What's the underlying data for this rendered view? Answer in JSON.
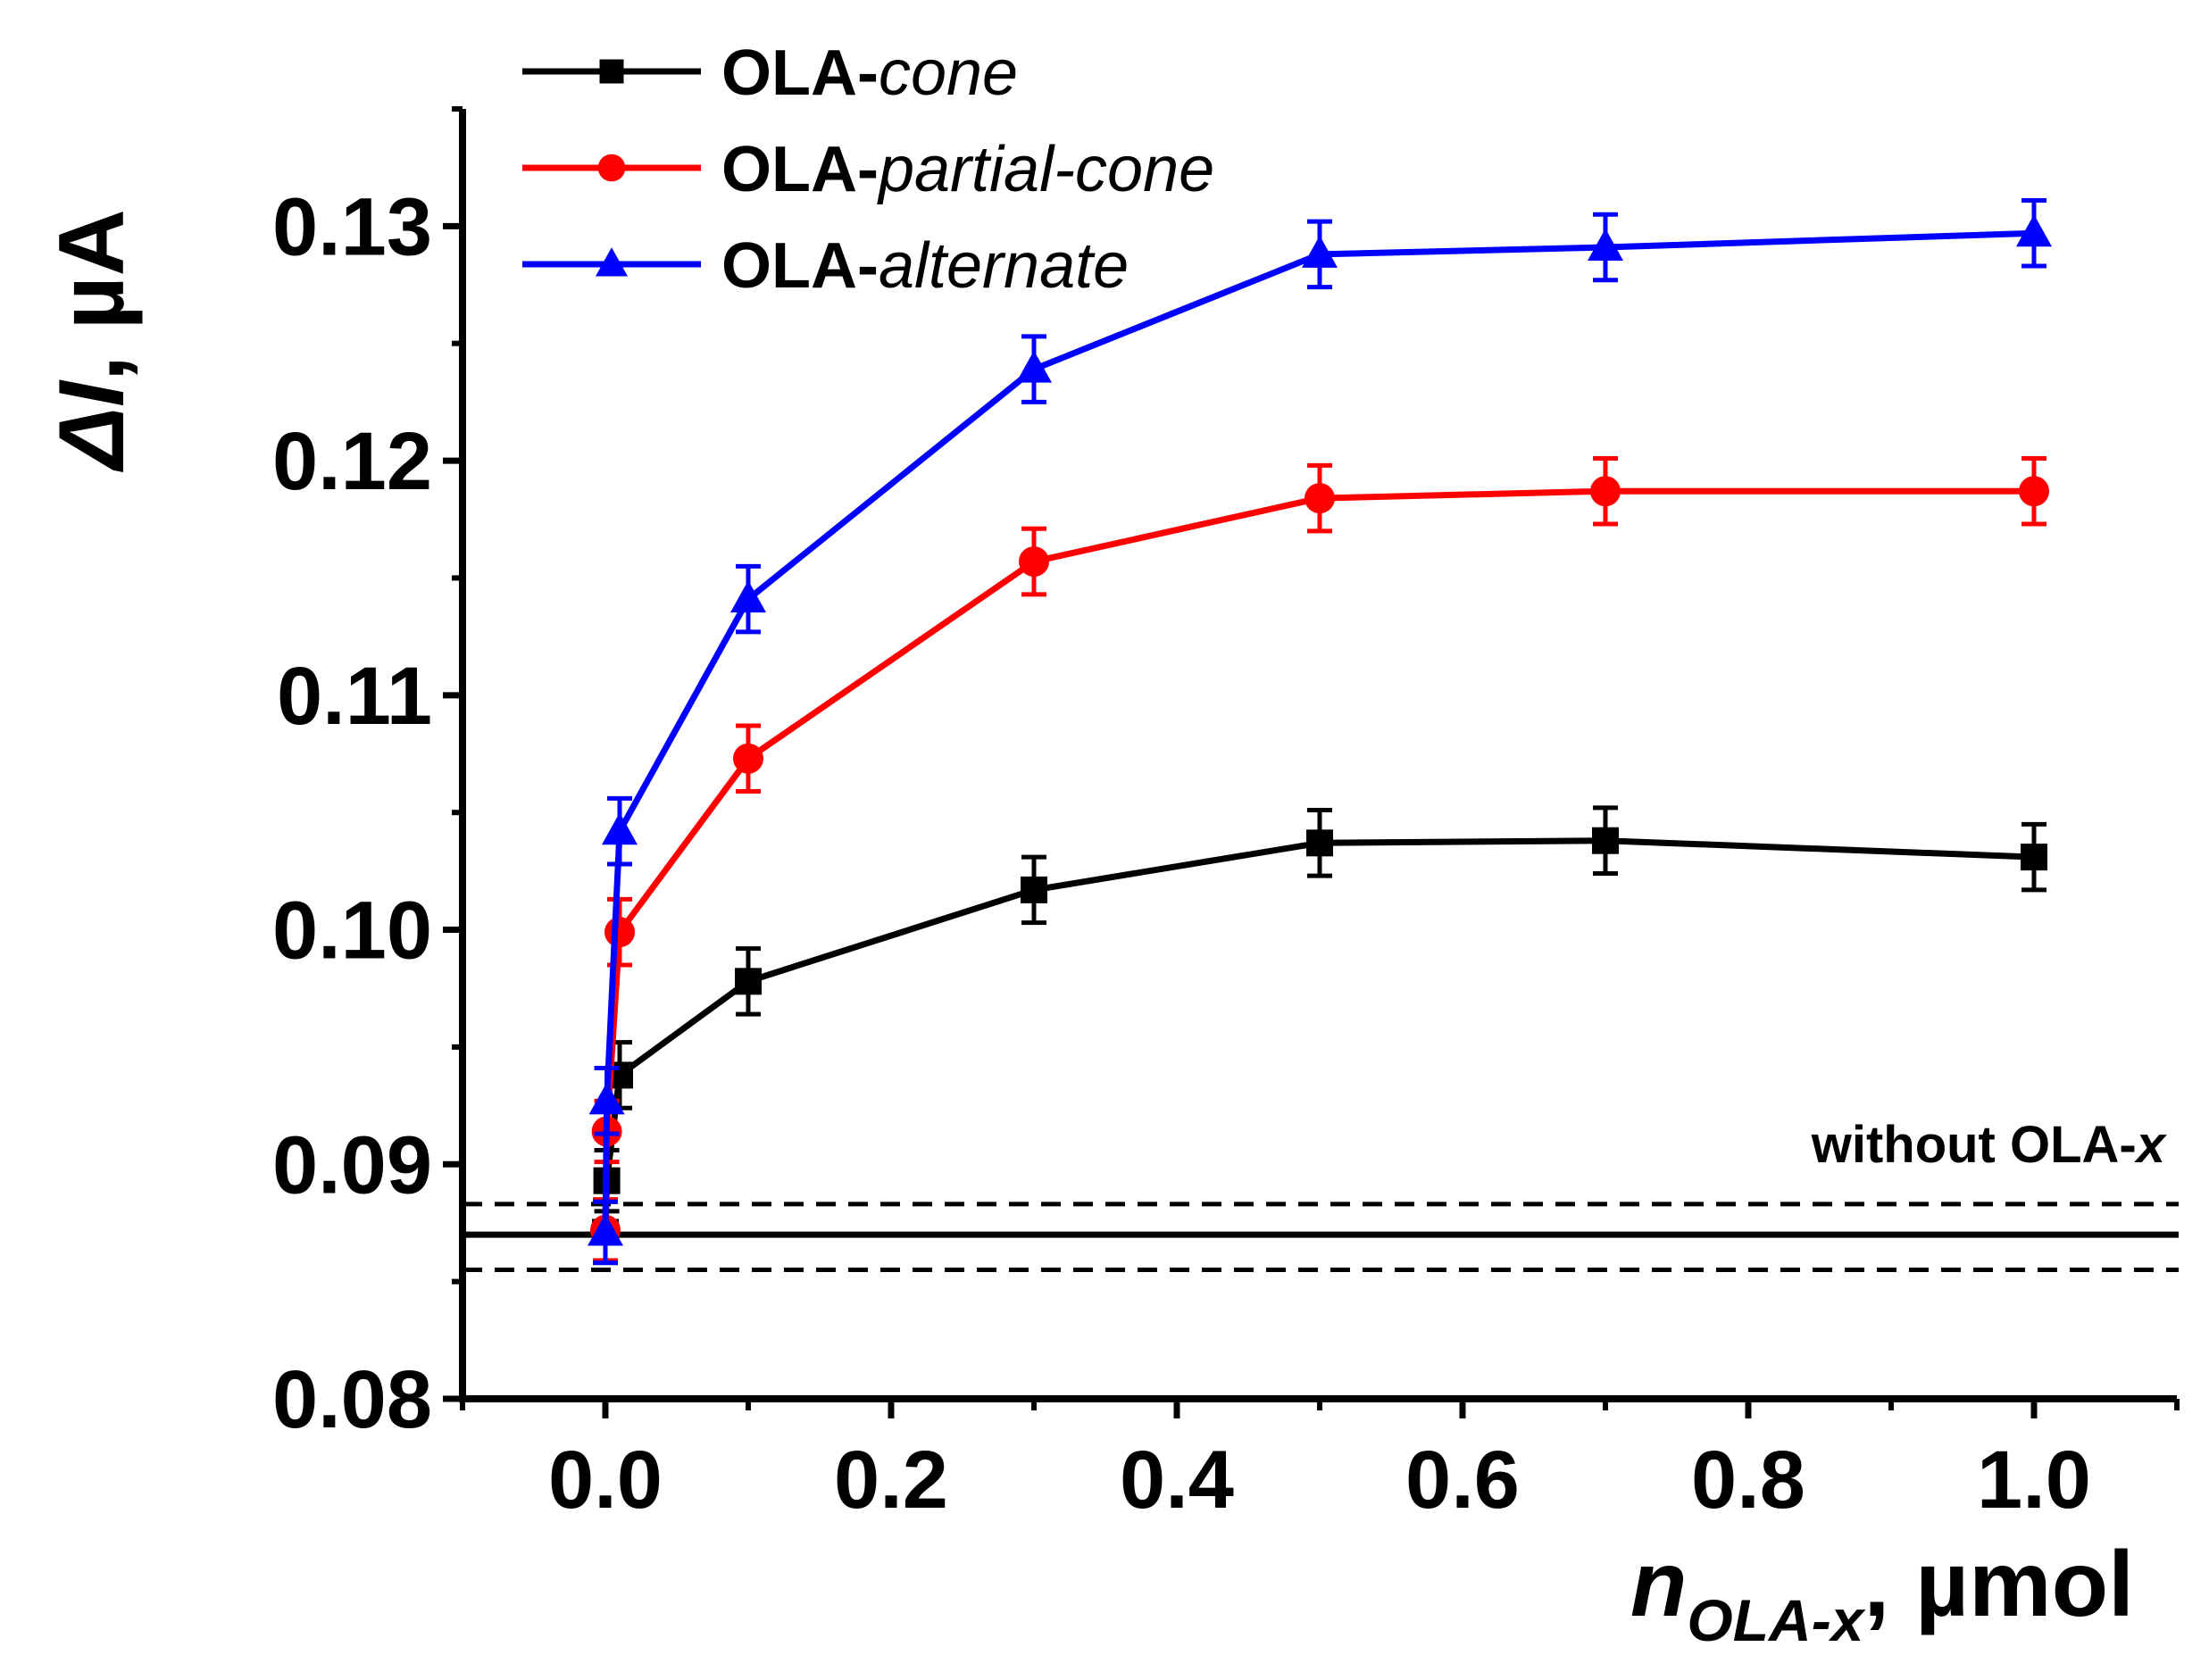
{
  "chart_data": {
    "type": "line",
    "x_axis": {
      "range": [
        -0.1,
        1.1
      ],
      "ticks": [
        0.0,
        0.2,
        0.4,
        0.6,
        0.8,
        1.0
      ],
      "tick_labels": [
        "0.0",
        "0.2",
        "0.4",
        "0.6",
        "0.8",
        "1.0"
      ],
      "label_main": "n",
      "label_sub": "OLA-x",
      "label_unit": ", µmol"
    },
    "y_axis": {
      "range": [
        0.08,
        0.135
      ],
      "ticks": [
        0.08,
        0.09,
        0.1,
        0.11,
        0.12,
        0.13
      ],
      "tick_labels": [
        "0.08",
        "0.09",
        "0.10",
        "0.11",
        "0.12",
        "0.13"
      ],
      "label_main": "ΔI",
      "label_unit": ", µA"
    },
    "legend_position": "top-left",
    "series": [
      {
        "name_prefix": "OLA-",
        "name_suffix": "cone",
        "color": "#000000",
        "marker": "square",
        "points": [
          {
            "x": 0.0,
            "y": 0.0871,
            "err": 0.0013
          },
          {
            "x": 0.001,
            "y": 0.0893,
            "err": 0.0013
          },
          {
            "x": 0.01,
            "y": 0.0938,
            "err": 0.0014
          },
          {
            "x": 0.1,
            "y": 0.0978,
            "err": 0.0014
          },
          {
            "x": 0.3,
            "y": 0.1017,
            "err": 0.0014
          },
          {
            "x": 0.5,
            "y": 0.1037,
            "err": 0.0014
          },
          {
            "x": 0.7,
            "y": 0.1038,
            "err": 0.0014
          },
          {
            "x": 1.0,
            "y": 0.1031,
            "err": 0.0014
          }
        ]
      },
      {
        "name_prefix": "OLA-",
        "name_suffix": "partial-cone",
        "color": "#ff0000",
        "marker": "circle",
        "points": [
          {
            "x": 0.0,
            "y": 0.0872,
            "err": 0.0013
          },
          {
            "x": 0.001,
            "y": 0.0914,
            "err": 0.0013
          },
          {
            "x": 0.01,
            "y": 0.0999,
            "err": 0.0014
          },
          {
            "x": 0.1,
            "y": 0.1073,
            "err": 0.0014
          },
          {
            "x": 0.3,
            "y": 0.1157,
            "err": 0.0014
          },
          {
            "x": 0.5,
            "y": 0.1184,
            "err": 0.0014
          },
          {
            "x": 0.7,
            "y": 0.1187,
            "err": 0.0014
          },
          {
            "x": 1.0,
            "y": 0.1187,
            "err": 0.0014
          }
        ]
      },
      {
        "name_prefix": "OLA-",
        "name_suffix": "alternate",
        "color": "#0000ff",
        "marker": "triangle",
        "points": [
          {
            "x": 0.0,
            "y": 0.0871,
            "err": 0.0013
          },
          {
            "x": 0.001,
            "y": 0.0927,
            "err": 0.0014
          },
          {
            "x": 0.01,
            "y": 0.1042,
            "err": 0.0014
          },
          {
            "x": 0.1,
            "y": 0.1141,
            "err": 0.0014
          },
          {
            "x": 0.3,
            "y": 0.1239,
            "err": 0.0014
          },
          {
            "x": 0.5,
            "y": 0.1288,
            "err": 0.0014
          },
          {
            "x": 0.7,
            "y": 0.1291,
            "err": 0.0014
          },
          {
            "x": 1.0,
            "y": 0.1297,
            "err": 0.0014
          }
        ]
      }
    ],
    "reference": {
      "label_text": "without OLA-",
      "label_italic": "x",
      "mean": 0.087,
      "lower": 0.0855,
      "upper": 0.0883
    }
  }
}
